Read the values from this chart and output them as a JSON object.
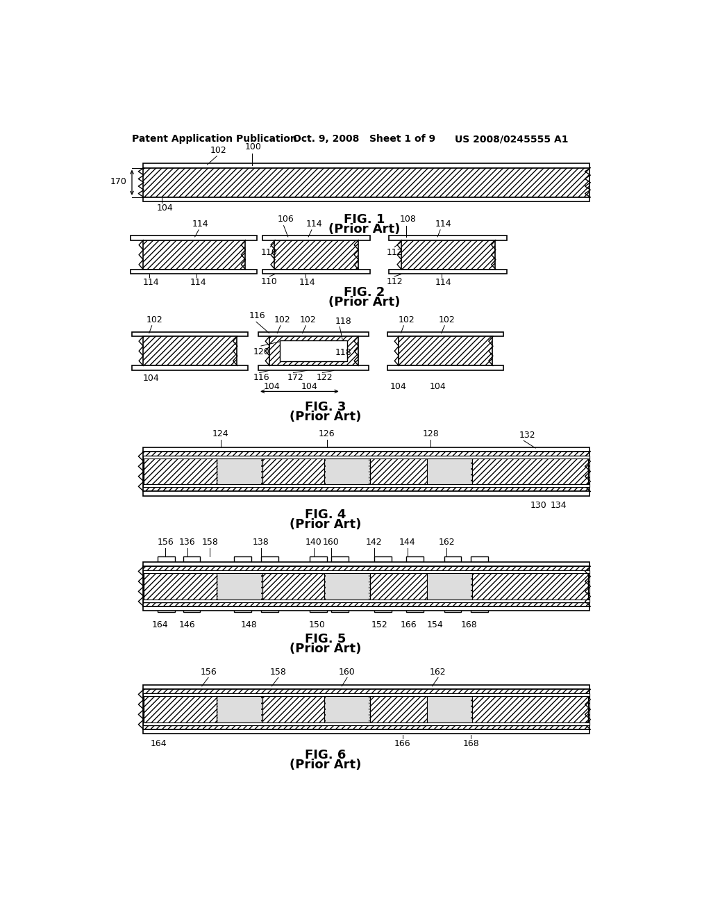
{
  "header_left": "Patent Application Publication",
  "header_mid": "Oct. 9, 2008   Sheet 1 of 9",
  "header_right": "US 2008/0245555 A1",
  "background": "#ffffff"
}
